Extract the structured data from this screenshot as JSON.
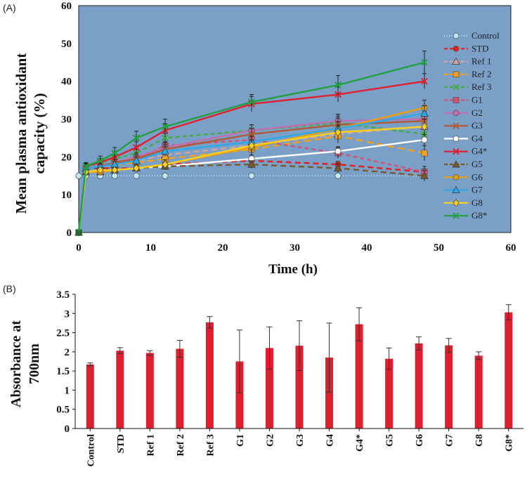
{
  "chart_data": [
    {
      "panel": "(A)",
      "type": "line",
      "ylabel": "Mean plasma antioxidant capacity (%)",
      "ylabel_lines": [
        "Mean plasma antioxidant",
        "capacity (%)"
      ],
      "xlabel": "Time (h)",
      "xlim": [
        0,
        60
      ],
      "ylim": [
        0,
        60
      ],
      "xticks": [
        0,
        10,
        20,
        30,
        40,
        50,
        60
      ],
      "yticks": [
        0,
        10,
        20,
        30,
        40,
        50,
        60
      ],
      "background_color": "#7aa0c8",
      "x": [
        0,
        1,
        3,
        5,
        8,
        12,
        24,
        36,
        48
      ],
      "series": [
        {
          "name": "Control",
          "color": "#bde8f8",
          "marker": "circle",
          "dash": "1,3",
          "values": [
            15,
            15,
            15,
            15,
            15,
            15,
            15,
            15,
            15
          ],
          "err": [
            0,
            0.3,
            0.3,
            0.3,
            0.3,
            0.3,
            0.3,
            0.3,
            0.5
          ]
        },
        {
          "name": "STD",
          "color": "#e02020",
          "marker": "circle",
          "dash": "8,5",
          "values": [
            0,
            17,
            17,
            17,
            17,
            18,
            19,
            18,
            16
          ],
          "err": [
            0,
            0.5,
            0.5,
            0.5,
            0.5,
            0.8,
            0.8,
            0.8,
            0.8
          ]
        },
        {
          "name": "Ref 1",
          "color": "#d4a6a0",
          "marker": "triangle",
          "dash": "8,5",
          "values": [
            0,
            17,
            17.5,
            18,
            19,
            20.5,
            23,
            26,
            28
          ],
          "err": [
            0,
            0.6,
            0.7,
            0.8,
            1,
            1.2,
            1.5,
            1.8,
            2
          ]
        },
        {
          "name": "Ref 2",
          "color": "#f0a020",
          "marker": "square",
          "dash": "10,5",
          "values": [
            0,
            17,
            17.5,
            18,
            18.5,
            19.5,
            22,
            25.5,
            21
          ],
          "err": [
            0,
            0.6,
            0.7,
            0.8,
            1,
            1.2,
            1.5,
            1.8,
            2
          ]
        },
        {
          "name": "Ref 3",
          "color": "#44aa44",
          "marker": "x",
          "dash": "6,4",
          "values": [
            0,
            17.5,
            18.5,
            19.5,
            21,
            25,
            27,
            29,
            26
          ],
          "err": [
            0,
            0.6,
            0.7,
            0.8,
            1,
            1.2,
            1.5,
            1.8,
            2
          ]
        },
        {
          "name": "G1",
          "color": "#cc5577",
          "marker": "square",
          "dash": "6,4",
          "values": [
            0,
            17,
            17.5,
            18,
            19.5,
            23,
            24.5,
            21,
            16
          ],
          "err": [
            0,
            0.5,
            0.6,
            0.7,
            0.8,
            1,
            1.2,
            1.4,
            1.5
          ]
        },
        {
          "name": "G2",
          "color": "#c070b0",
          "marker": "circle",
          "dash": "",
          "values": [
            0,
            17,
            17.5,
            18.5,
            20,
            22.5,
            27,
            29.5,
            30
          ],
          "err": [
            0,
            0.6,
            0.7,
            0.8,
            1,
            1.2,
            1.5,
            1.8,
            2
          ]
        },
        {
          "name": "G3",
          "color": "#b05a36",
          "marker": "x",
          "dash": "",
          "values": [
            0,
            17,
            17.5,
            18.5,
            19.5,
            22,
            26,
            28.5,
            29.5
          ],
          "err": [
            0,
            0.6,
            0.7,
            0.8,
            1,
            1.2,
            1.5,
            1.8,
            2
          ]
        },
        {
          "name": "G4",
          "color": "#ffffff",
          "marker": "circle",
          "dash": "",
          "values": [
            0,
            16,
            16,
            16.5,
            17,
            17.5,
            19.5,
            21.5,
            24.5
          ],
          "err": [
            0,
            0.5,
            0.5,
            0.6,
            0.7,
            0.8,
            1,
            1.2,
            1.4
          ]
        },
        {
          "name": "G4*",
          "color": "#e02030",
          "marker": "x",
          "dash": "",
          "values": [
            0,
            17.5,
            18.5,
            20,
            22.5,
            27,
            34,
            36.5,
            40
          ],
          "err": [
            0,
            0.8,
            1,
            1.2,
            1.5,
            1.8,
            2,
            2,
            2
          ]
        },
        {
          "name": "G5",
          "color": "#7a5a2a",
          "marker": "triangle",
          "dash": "8,5",
          "values": [
            0,
            16,
            16,
            16.5,
            17,
            17.5,
            18,
            17,
            15
          ],
          "err": [
            0,
            0.5,
            0.5,
            0.6,
            0.7,
            0.8,
            1,
            1.2,
            1.4
          ]
        },
        {
          "name": "G6",
          "color": "#e8a010",
          "marker": "circle",
          "dash": "",
          "values": [
            0,
            16,
            16,
            16.5,
            17,
            18,
            22.5,
            27.5,
            33
          ],
          "err": [
            0,
            0.6,
            0.7,
            0.8,
            1,
            1.2,
            1.5,
            1.8,
            2
          ]
        },
        {
          "name": "G7",
          "color": "#30a8e8",
          "marker": "triangle",
          "dash": "",
          "values": [
            0,
            17,
            17.5,
            18,
            19,
            21.5,
            24,
            27.5,
            31.5
          ],
          "err": [
            0,
            0.6,
            0.7,
            0.8,
            1,
            1.2,
            1.5,
            1.8,
            2
          ]
        },
        {
          "name": "G8",
          "color": "#ffd020",
          "marker": "diamond",
          "dash": "",
          "values": [
            0,
            16,
            16.5,
            16.5,
            17,
            18,
            23,
            26.5,
            28
          ],
          "err": [
            0,
            0.6,
            0.7,
            0.8,
            1,
            1.2,
            1.5,
            1.8,
            2
          ]
        },
        {
          "name": "G8*",
          "color": "#20a040",
          "marker": "x",
          "dash": "",
          "values": [
            0,
            17.5,
            19,
            21,
            25,
            28,
            34.5,
            39,
            45
          ],
          "err": [
            0,
            1,
            1.2,
            1.5,
            1.8,
            2,
            2,
            2.5,
            3
          ]
        }
      ]
    },
    {
      "panel": "(B)",
      "type": "bar",
      "ylabel": "Absorbance at 700nm",
      "ylabel_lines": [
        "Absorbance at",
        "700nm"
      ],
      "xlabel": "",
      "ylim": [
        0,
        3.5
      ],
      "yticks": [
        "0",
        "0.5",
        "1",
        "1.5",
        "2",
        "2.5",
        "3",
        "3.5"
      ],
      "bar_color": "#dc2030",
      "categories": [
        "Control",
        "STD",
        "Ref 1",
        "Ref 2",
        "Ref 3",
        "G1",
        "G2",
        "G3",
        "G4",
        "G4*",
        "G5",
        "G6",
        "G7",
        "G8",
        "G8*"
      ],
      "values": [
        1.67,
        2.03,
        1.97,
        2.08,
        2.77,
        1.75,
        2.1,
        2.16,
        1.85,
        2.72,
        1.82,
        2.22,
        2.17,
        1.9,
        3.03
      ],
      "errors": [
        0.04,
        0.08,
        0.06,
        0.22,
        0.15,
        0.82,
        0.55,
        0.65,
        0.9,
        0.43,
        0.28,
        0.17,
        0.18,
        0.1,
        0.2
      ]
    }
  ]
}
